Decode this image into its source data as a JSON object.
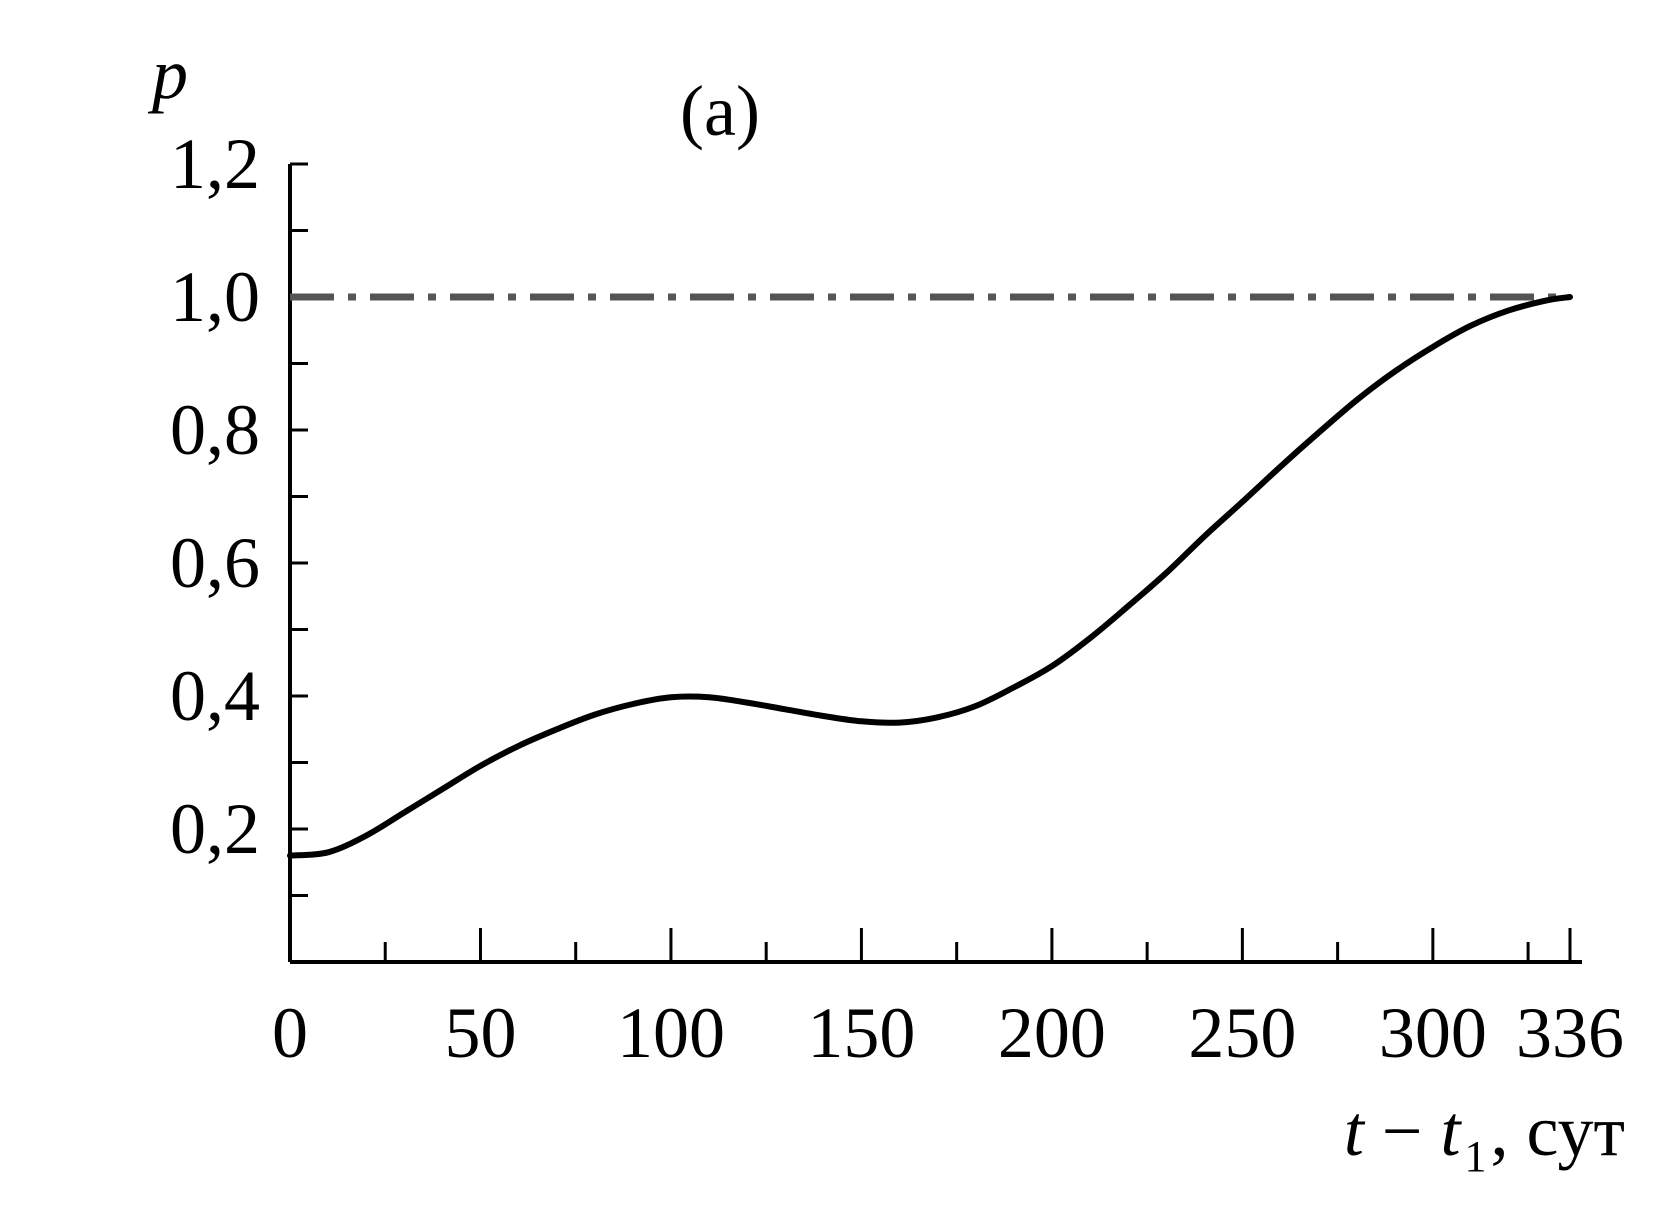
{
  "chart_data": {
    "type": "line",
    "panel_label": "(a)",
    "ylabel": "p",
    "xlabel": {
      "var": "t",
      "minus": "−",
      "var2": "t",
      "sub": "1",
      "unit": ", сут"
    },
    "xlim": [
      0,
      336
    ],
    "ylim": [
      0,
      1.2
    ],
    "x_ticks": [
      0,
      50,
      100,
      150,
      200,
      250,
      300,
      336
    ],
    "x_tick_labels": [
      "0",
      "50",
      "100",
      "150",
      "200",
      "250",
      "300",
      "336"
    ],
    "x_minor_ticks": [
      25,
      75,
      125,
      175,
      225,
      275,
      325
    ],
    "y_ticks": [
      0.2,
      0.4,
      0.6,
      0.8,
      1.0,
      1.2
    ],
    "y_tick_labels": [
      "0,2",
      "0,4",
      "0,6",
      "0,8",
      "1,0",
      "1,2"
    ],
    "y_minor_ticks": [
      0.1,
      0.3,
      0.5,
      0.7,
      0.9,
      1.1
    ],
    "grid": false,
    "reference_line": {
      "y": 1.0,
      "style": "dash-dot",
      "color": "#555555"
    },
    "series": [
      {
        "color": "#000000",
        "x": [
          0,
          10,
          20,
          30,
          40,
          50,
          60,
          70,
          80,
          90,
          100,
          110,
          120,
          130,
          140,
          150,
          160,
          170,
          180,
          190,
          200,
          210,
          220,
          230,
          240,
          250,
          260,
          270,
          280,
          290,
          300,
          310,
          320,
          330,
          336
        ],
        "y": [
          0.16,
          0.165,
          0.19,
          0.225,
          0.26,
          0.295,
          0.325,
          0.35,
          0.372,
          0.388,
          0.398,
          0.398,
          0.39,
          0.38,
          0.37,
          0.362,
          0.36,
          0.368,
          0.385,
          0.413,
          0.445,
          0.487,
          0.535,
          0.585,
          0.64,
          0.692,
          0.745,
          0.796,
          0.845,
          0.888,
          0.925,
          0.957,
          0.98,
          0.995,
          1.0
        ]
      }
    ]
  }
}
